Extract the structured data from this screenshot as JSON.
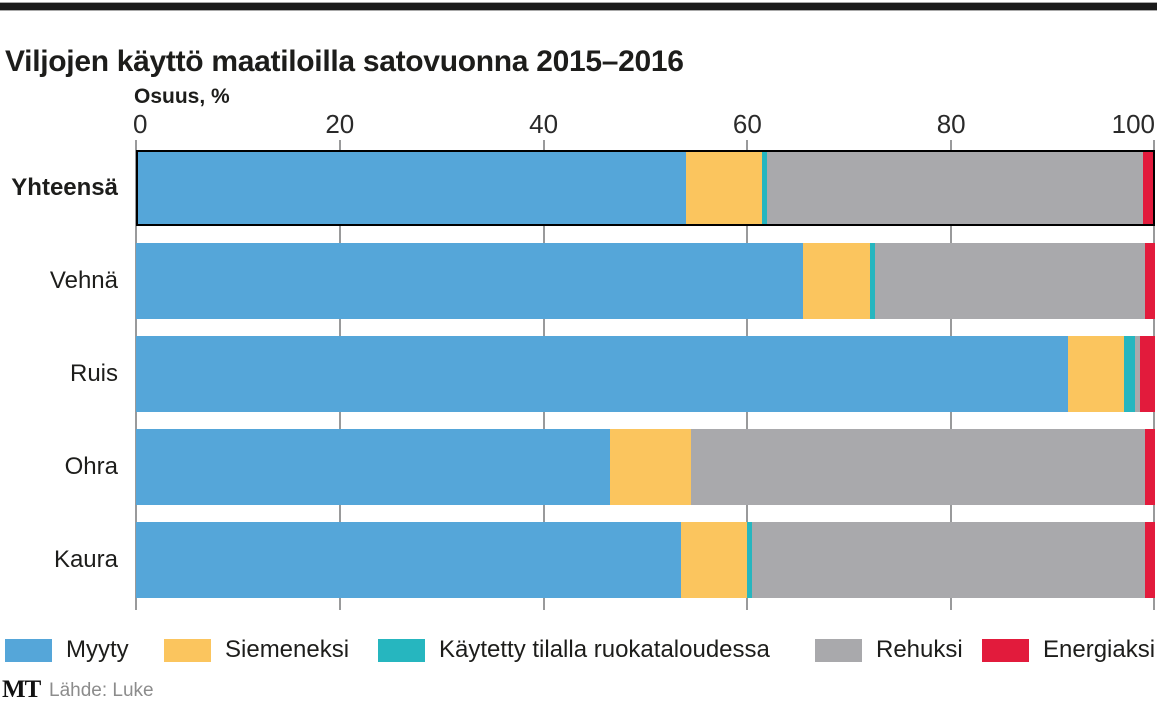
{
  "title": "Viljojen käyttö maatiloilla satovuonna 2015–2016",
  "axis": {
    "label": "Osuus, %",
    "ticks": [
      0,
      20,
      40,
      60,
      80,
      100
    ]
  },
  "chart_data": {
    "type": "bar",
    "orientation": "horizontal",
    "stacked": true,
    "title": "Viljojen käyttö maatiloilla satovuonna 2015–2016",
    "xlabel": "Osuus, %",
    "xlim": [
      0,
      100
    ],
    "grid": true,
    "legend_position": "bottom",
    "categories": [
      "Yhteensä",
      "Vehnä",
      "Ruis",
      "Ohra",
      "Kaura"
    ],
    "series": [
      {
        "name": "Myyty",
        "color": "#55a6d9",
        "values": [
          54,
          65.5,
          91.5,
          46.5,
          53.5
        ]
      },
      {
        "name": "Siemeneksi",
        "color": "#fbc55e",
        "values": [
          7.5,
          6.5,
          5.5,
          8,
          6.5
        ]
      },
      {
        "name": "Käytetty tilalla ruokataloudessa",
        "color": "#26b6bf",
        "values": [
          0.5,
          0.5,
          1,
          0,
          0.5
        ]
      },
      {
        "name": "Rehuksi",
        "color": "#a9a9ac",
        "values": [
          37,
          26.5,
          0.5,
          44.5,
          38.5
        ]
      },
      {
        "name": "Energiaksi",
        "color": "#e21b3c",
        "values": [
          1,
          1,
          1.5,
          1,
          1
        ]
      }
    ],
    "total_row": "Yhteensä"
  },
  "legend": {
    "items": [
      {
        "label": "Myyty",
        "color": "#55a6d9"
      },
      {
        "label": "Siemeneksi",
        "color": "#fbc55e"
      },
      {
        "label": "Käytetty tilalla ruokataloudessa",
        "color": "#26b6bf"
      },
      {
        "label": "Rehuksi",
        "color": "#a9a9ac"
      },
      {
        "label": "Energiaksi",
        "color": "#e21b3c"
      }
    ]
  },
  "footer": {
    "logo": "MT",
    "source": "Lähde: Luke"
  },
  "colors": {
    "grid": "#999a9b",
    "text": "#1d1d1b",
    "source_text": "#8c8c8c",
    "top_rule": "#1b1b1b"
  }
}
